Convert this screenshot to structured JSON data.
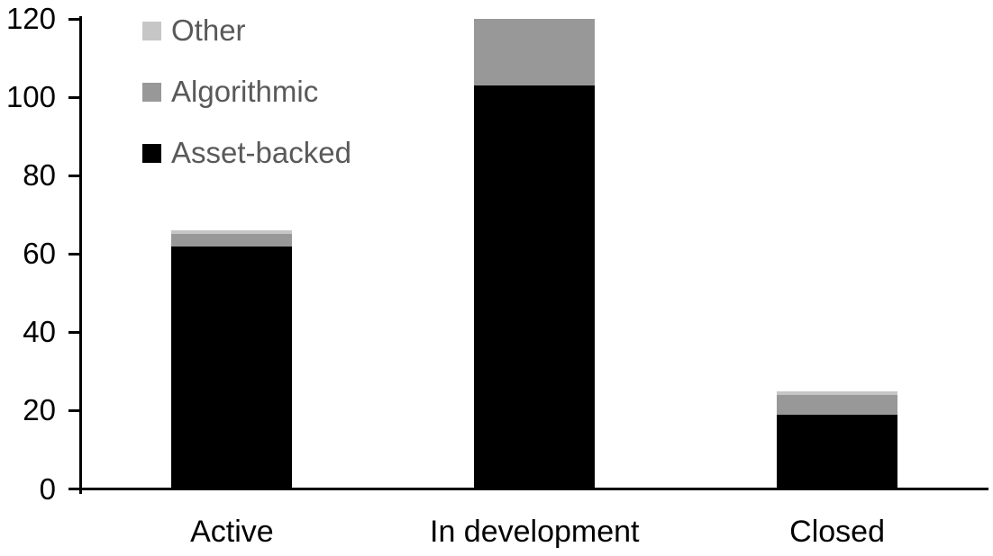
{
  "chart_data": {
    "type": "bar",
    "stacked": true,
    "title": "",
    "xlabel": "",
    "ylabel": "",
    "categories": [
      "Active",
      "In development",
      "Closed"
    ],
    "series": [
      {
        "name": "Asset-backed",
        "color": "#000000",
        "values": [
          62,
          103,
          19
        ]
      },
      {
        "name": "Algorithmic",
        "color": "#989898",
        "values": [
          3,
          17,
          5
        ]
      },
      {
        "name": "Other",
        "color": "#c6c6c6",
        "values": [
          1,
          0,
          1
        ]
      }
    ],
    "ylim": [
      0,
      120
    ],
    "yticks": [
      0,
      20,
      40,
      60,
      80,
      100,
      120
    ],
    "grid": false,
    "legend": {
      "position": "top-left-inside",
      "order": [
        "Other",
        "Algorithmic",
        "Asset-backed"
      ],
      "text_color": "#595959"
    },
    "axis_color": "#000000",
    "background": "#ffffff"
  }
}
